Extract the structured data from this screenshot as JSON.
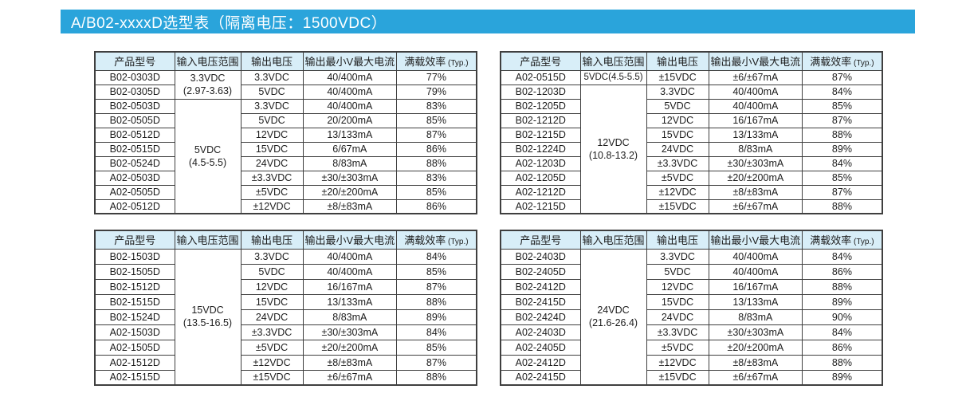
{
  "banner": {
    "title": "A/B02-xxxxD选型表（隔离电压：1500VDC）"
  },
  "colors": {
    "banner_bg": "#2AA4DB",
    "header_bg": "#D8EEF8",
    "border": "#3F3F3F",
    "banner_text": "#FFFFFF"
  },
  "table_headers": [
    {
      "text": "产品型号",
      "suffix": ""
    },
    {
      "text": "输入电压范围",
      "suffix": ""
    },
    {
      "text": "输出电压",
      "suffix": ""
    },
    {
      "text": "输出最小V最大电流",
      "suffix": ""
    },
    {
      "text": "满载效率",
      "suffix": "(Typ.)"
    }
  ],
  "tables": [
    {
      "name": "top-left",
      "input_groups": [
        {
          "rows": 2,
          "lines": [
            "3.3VDC",
            "(2.97-3.63)"
          ]
        },
        {
          "rows": 8,
          "lines": [
            "5VDC",
            "(4.5-5.5)"
          ]
        }
      ],
      "rows": [
        {
          "model": "B02-0303D",
          "vout": "3.3VDC",
          "current": "40/400mA",
          "eff": "77%"
        },
        {
          "model": "B02-0305D",
          "vout": "5VDC",
          "current": "40/400mA",
          "eff": "79%"
        },
        {
          "model": "B02-0503D",
          "vout": "3.3VDC",
          "current": "40/400mA",
          "eff": "83%"
        },
        {
          "model": "B02-0505D",
          "vout": "5VDC",
          "current": "20/200mA",
          "eff": "85%"
        },
        {
          "model": "B02-0512D",
          "vout": "12VDC",
          "current": "13/133mA",
          "eff": "87%"
        },
        {
          "model": "B02-0515D",
          "vout": "15VDC",
          "current": "6/67mA",
          "eff": "86%"
        },
        {
          "model": "B02-0524D",
          "vout": "24VDC",
          "current": "8/83mA",
          "eff": "88%"
        },
        {
          "model": "A02-0503D",
          "vout": "±3.3VDC",
          "current": "±30/±303mA",
          "eff": "83%"
        },
        {
          "model": "A02-0505D",
          "vout": "±5VDC",
          "current": "±20/±200mA",
          "eff": "85%"
        },
        {
          "model": "A02-0512D",
          "vout": "±12VDC",
          "current": "±8/±83mA",
          "eff": "86%"
        }
      ]
    },
    {
      "name": "top-right",
      "input_groups": [
        {
          "rows": 1,
          "lines": [
            "5VDC(4.5-5.5)"
          ]
        },
        {
          "rows": 9,
          "lines": [
            "12VDC",
            "(10.8-13.2)"
          ]
        }
      ],
      "rows": [
        {
          "model": "A02-0515D",
          "vout": "±15VDC",
          "current": "±6/±67mA",
          "eff": "87%"
        },
        {
          "model": "B02-1203D",
          "vout": "3.3VDC",
          "current": "40/400mA",
          "eff": "84%"
        },
        {
          "model": "B02-1205D",
          "vout": "5VDC",
          "current": "40/400mA",
          "eff": "85%"
        },
        {
          "model": "B02-1212D",
          "vout": "12VDC",
          "current": "16/167mA",
          "eff": "87%"
        },
        {
          "model": "B02-1215D",
          "vout": "15VDC",
          "current": "13/133mA",
          "eff": "88%"
        },
        {
          "model": "B02-1224D",
          "vout": "24VDC",
          "current": "8/83mA",
          "eff": "89%"
        },
        {
          "model": "A02-1203D",
          "vout": "±3.3VDC",
          "current": "±30/±303mA",
          "eff": "84%"
        },
        {
          "model": "A02-1205D",
          "vout": "±5VDC",
          "current": "±20/±200mA",
          "eff": "85%"
        },
        {
          "model": "A02-1212D",
          "vout": "±12VDC",
          "current": "±8/±83mA",
          "eff": "87%"
        },
        {
          "model": "A02-1215D",
          "vout": "±15VDC",
          "current": "±6/±67mA",
          "eff": "88%"
        }
      ]
    },
    {
      "name": "bottom-left",
      "input_groups": [
        {
          "rows": 9,
          "lines": [
            "15VDC",
            "(13.5-16.5)"
          ]
        }
      ],
      "rows": [
        {
          "model": "B02-1503D",
          "vout": "3.3VDC",
          "current": "40/400mA",
          "eff": "84%"
        },
        {
          "model": "B02-1505D",
          "vout": "5VDC",
          "current": "40/400mA",
          "eff": "85%"
        },
        {
          "model": "B02-1512D",
          "vout": "12VDC",
          "current": "16/167mA",
          "eff": "87%"
        },
        {
          "model": "B02-1515D",
          "vout": "15VDC",
          "current": "13/133mA",
          "eff": "88%"
        },
        {
          "model": "B02-1524D",
          "vout": "24VDC",
          "current": "8/83mA",
          "eff": "89%"
        },
        {
          "model": "A02-1503D",
          "vout": "±3.3VDC",
          "current": "±30/±303mA",
          "eff": "84%"
        },
        {
          "model": "A02-1505D",
          "vout": "±5VDC",
          "current": "±20/±200mA",
          "eff": "85%"
        },
        {
          "model": "A02-1512D",
          "vout": "±12VDC",
          "current": "±8/±83mA",
          "eff": "87%"
        },
        {
          "model": "A02-1515D",
          "vout": "±15VDC",
          "current": "±6/±67mA",
          "eff": "88%"
        }
      ]
    },
    {
      "name": "bottom-right",
      "input_groups": [
        {
          "rows": 9,
          "lines": [
            "24VDC",
            "(21.6-26.4)"
          ]
        }
      ],
      "rows": [
        {
          "model": "B02-2403D",
          "vout": "3.3VDC",
          "current": "40/400mA",
          "eff": "84%"
        },
        {
          "model": "B02-2405D",
          "vout": "5VDC",
          "current": "40/400mA",
          "eff": "86%"
        },
        {
          "model": "B02-2412D",
          "vout": "12VDC",
          "current": "16/167mA",
          "eff": "88%"
        },
        {
          "model": "B02-2415D",
          "vout": "15VDC",
          "current": "13/133mA",
          "eff": "89%"
        },
        {
          "model": "B02-2424D",
          "vout": "24VDC",
          "current": "8/83mA",
          "eff": "90%"
        },
        {
          "model": "A02-2403D",
          "vout": "±3.3VDC",
          "current": "±30/±303mA",
          "eff": "84%"
        },
        {
          "model": "A02-2405D",
          "vout": "±5VDC",
          "current": "±20/±200mA",
          "eff": "86%"
        },
        {
          "model": "A02-2412D",
          "vout": "±12VDC",
          "current": "±8/±83mA",
          "eff": "88%"
        },
        {
          "model": "A02-2415D",
          "vout": "±15VDC",
          "current": "±6/±67mA",
          "eff": "89%"
        }
      ]
    }
  ]
}
